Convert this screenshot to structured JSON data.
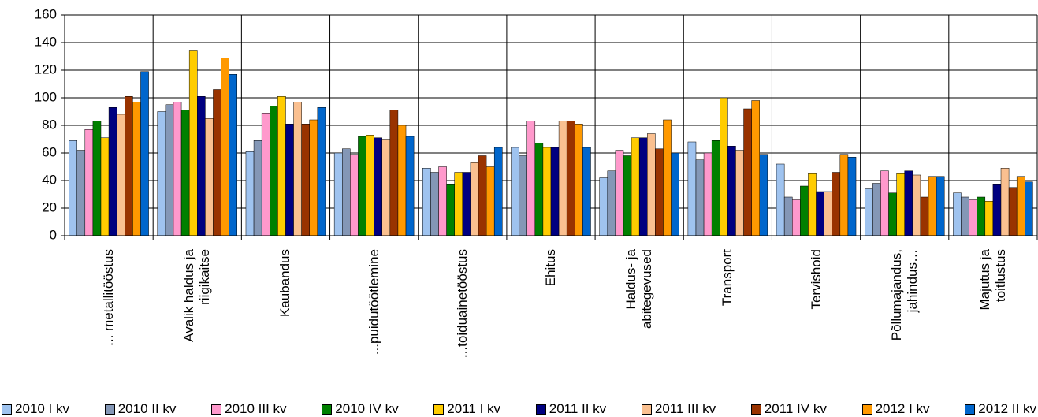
{
  "chart_data": {
    "type": "bar",
    "categories": [
      "... metallitööstus",
      "Avalik haldus ja\nriigikaitse",
      "Kaubandus",
      "...puidutöötlemine",
      "...toiduainetööstus",
      "Ehitus",
      "Haldus- ja\nabitegevused",
      "Transport",
      "Tervishoid",
      "Põllumajandus,\njahindus…",
      "Majutus ja\ntoitlustus"
    ],
    "series": [
      {
        "name": "2010 I kv",
        "color": "#9fc3ef",
        "values": [
          69,
          90,
          61,
          60,
          49,
          64,
          42,
          68,
          52,
          34,
          31
        ]
      },
      {
        "name": "2010 II kv",
        "color": "#8497b6",
        "values": [
          62,
          95,
          69,
          63,
          46,
          58,
          47,
          55,
          28,
          38,
          28
        ]
      },
      {
        "name": "2010 III kv",
        "color": "#ff99cc",
        "values": [
          77,
          97,
          89,
          59,
          50,
          83,
          62,
          60,
          26,
          47,
          26
        ]
      },
      {
        "name": "2010 IV kv",
        "color": "#008000",
        "values": [
          83,
          91,
          94,
          72,
          37,
          67,
          58,
          69,
          36,
          31,
          28
        ]
      },
      {
        "name": "2011 I kv",
        "color": "#ffcc00",
        "values": [
          71,
          134,
          101,
          73,
          46,
          64,
          71,
          100,
          45,
          45,
          25
        ]
      },
      {
        "name": "2011 II kv",
        "color": "#000080",
        "values": [
          93,
          101,
          81,
          71,
          46,
          64,
          71,
          65,
          32,
          47,
          37
        ]
      },
      {
        "name": "2011 III kv",
        "color": "#fac090",
        "values": [
          88,
          85,
          97,
          70,
          53,
          83,
          74,
          62,
          32,
          44,
          49
        ]
      },
      {
        "name": "2011 IV kv",
        "color": "#993300",
        "values": [
          101,
          106,
          81,
          91,
          58,
          83,
          63,
          92,
          46,
          28,
          35
        ]
      },
      {
        "name": "2012 I kv",
        "color": "#ff9900",
        "values": [
          97,
          129,
          84,
          80,
          50,
          81,
          84,
          98,
          59,
          43,
          43
        ]
      },
      {
        "name": "2012 II kv",
        "color": "#0066cc",
        "values": [
          119,
          117,
          93,
          72,
          64,
          64,
          60,
          59,
          57,
          43,
          39
        ]
      }
    ],
    "ylim": [
      0,
      160
    ],
    "yticks": [
      0,
      20,
      40,
      60,
      80,
      100,
      120,
      140,
      160
    ],
    "grid": true
  }
}
